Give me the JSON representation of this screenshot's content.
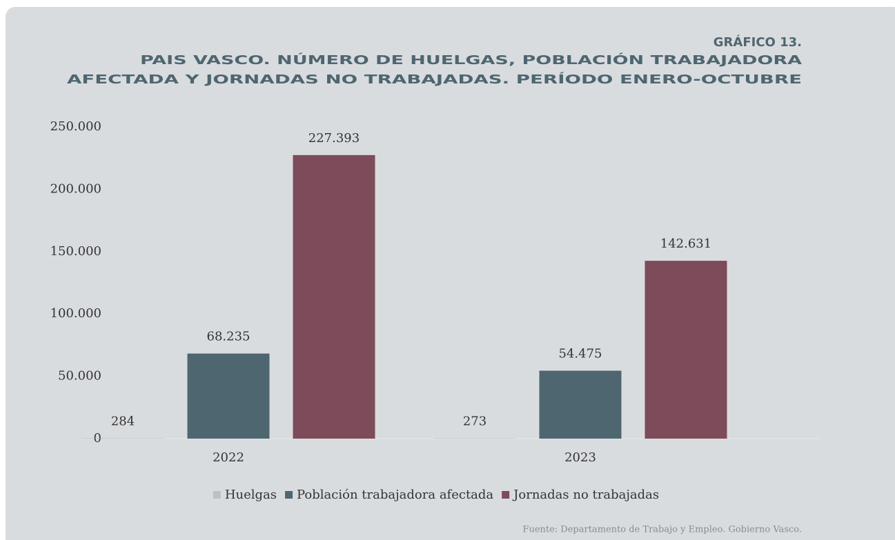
{
  "chart_data": {
    "type": "bar",
    "label": "GRÁFICO 13.",
    "title": [
      "PAIS VASCO. NÚMERO DE HUELGAS, POBLACIÓN TRABAJADORA",
      "AFECTADA Y JORNADAS NO TRABAJADAS. PERÍODO ENERO-OCTUBRE"
    ],
    "categories": [
      "2022",
      "2023"
    ],
    "series": [
      {
        "name": "Huelgas",
        "color": "#bfbfbf",
        "values": [
          284,
          273
        ],
        "value_labels": [
          "284",
          "273"
        ]
      },
      {
        "name": "Población trabajadora afectada",
        "color": "#4e6670",
        "values": [
          68235,
          54475
        ],
        "value_labels": [
          "68.235",
          "54.475"
        ]
      },
      {
        "name": "Jornadas no trabajadas",
        "color": "#7d4b5a",
        "values": [
          227393,
          142631
        ],
        "value_labels": [
          "227.393",
          "142.631"
        ]
      }
    ],
    "ylim": [
      0,
      250000
    ],
    "yticks": [
      0,
      {
        "value": 50000,
        "label": "50.000"
      },
      {
        "value": 100000,
        "label": "100.000"
      },
      {
        "value": 150000,
        "label": "150.000"
      },
      {
        "value": 200000,
        "label": "200.000"
      },
      {
        "value": 250000,
        "label": "250.000"
      }
    ],
    "grid": false,
    "legend": "bottom",
    "source": "Fuente: Departamento de Trabajo y Empleo. Gobierno Vasco."
  }
}
